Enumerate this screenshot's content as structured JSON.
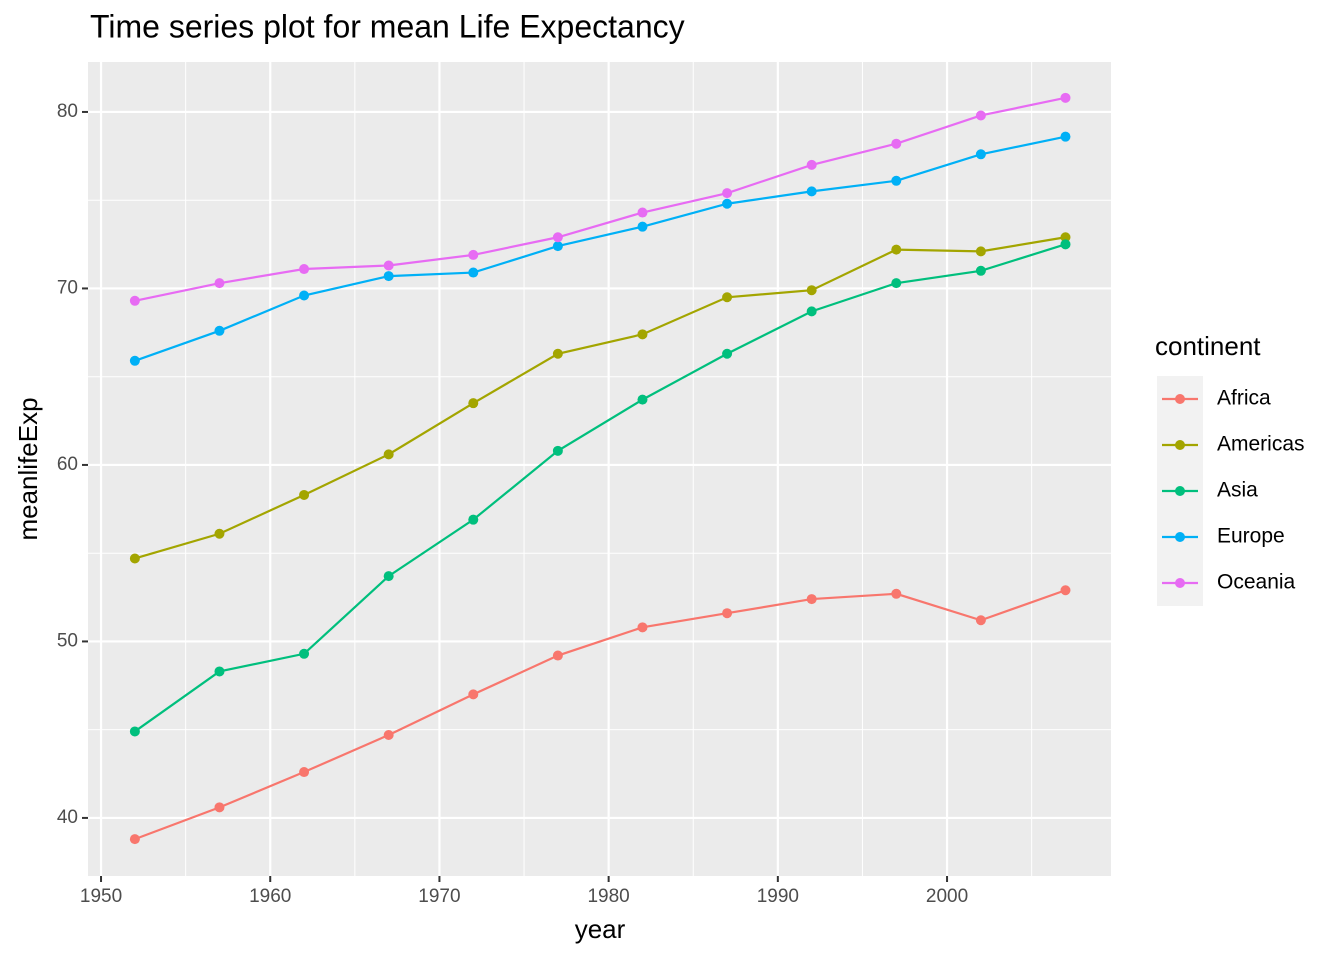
{
  "chart_data": {
    "type": "line",
    "title": "Time series plot for mean Life Expectancy",
    "x_label": "year",
    "y_label": "meanlifeExp",
    "legend_title": "continent",
    "legend_position": "right",
    "grid": true,
    "x": [
      1952,
      1957,
      1962,
      1967,
      1972,
      1977,
      1982,
      1987,
      1992,
      1997,
      2002,
      2007
    ],
    "series": [
      {
        "name": "Africa",
        "color": "#F8766D",
        "values": [
          38.8,
          40.6,
          42.6,
          44.7,
          47.0,
          49.2,
          50.8,
          51.6,
          52.4,
          52.7,
          51.2,
          52.9
        ]
      },
      {
        "name": "Americas",
        "color": "#A3A500",
        "values": [
          54.7,
          56.1,
          58.3,
          60.6,
          63.5,
          66.3,
          67.4,
          69.5,
          69.9,
          72.2,
          72.1,
          72.9
        ]
      },
      {
        "name": "Asia",
        "color": "#00BF7D",
        "values": [
          44.9,
          48.3,
          49.3,
          53.7,
          56.9,
          60.8,
          63.7,
          66.3,
          68.7,
          70.3,
          71.0,
          72.5
        ]
      },
      {
        "name": "Europe",
        "color": "#00B0F6",
        "values": [
          65.9,
          67.6,
          69.6,
          70.7,
          70.9,
          72.4,
          73.5,
          74.8,
          75.5,
          76.1,
          77.6,
          78.6
        ]
      },
      {
        "name": "Oceania",
        "color": "#E76BF3",
        "values": [
          69.3,
          70.3,
          71.1,
          71.3,
          71.9,
          72.9,
          74.3,
          75.4,
          77.0,
          78.2,
          79.8,
          80.8
        ]
      }
    ],
    "xlim": [
      1949.23,
      2009.69
    ],
    "xticks": [
      1950,
      1960,
      1970,
      1980,
      1990,
      2000
    ],
    "ylim": [
      36.71,
      82.83
    ],
    "yticks": [
      40,
      50,
      60,
      70,
      80
    ]
  }
}
